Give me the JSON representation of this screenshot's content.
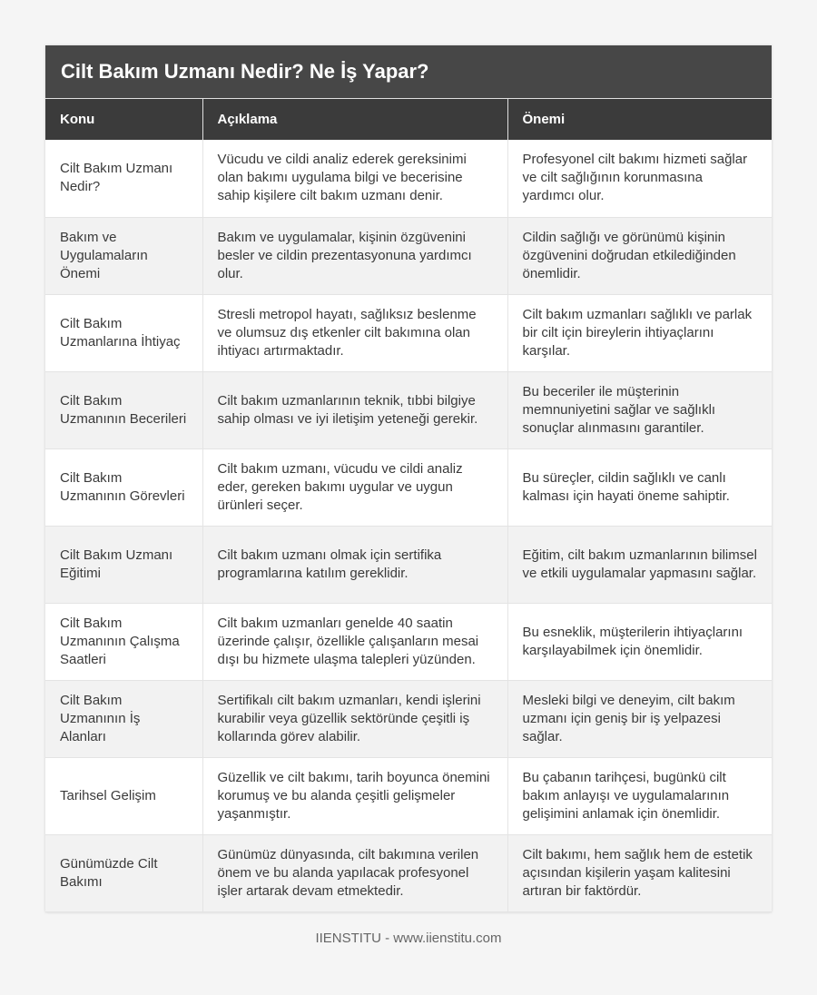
{
  "title": "Cilt Bakım Uzmanı Nedir? Ne İş Yapar?",
  "headers": [
    "Konu",
    "Açıklama",
    "Önemi"
  ],
  "rows": [
    [
      "Cilt Bakım Uzmanı Nedir?",
      "Vücudu ve cildi analiz ederek gereksinimi olan bakımı uygulama bilgi ve becerisine sahip kişilere cilt bakım uzmanı denir.",
      "Profesyonel cilt bakımı hizmeti sağlar ve cilt sağlığının korunmasına yardımcı olur."
    ],
    [
      "Bakım ve Uygulamaların Önemi",
      "Bakım ve uygulamalar, kişinin özgüvenini besler ve cildin prezentasyonuna yardımcı olur.",
      "Cildin sağlığı ve görünümü kişinin özgüvenini doğrudan etkilediğinden önemlidir."
    ],
    [
      "Cilt Bakım Uzmanlarına İhtiyaç",
      "Stresli metropol hayatı, sağlıksız beslenme ve olumsuz dış etkenler cilt bakımına olan ihtiyacı artırmaktadır.",
      "Cilt bakım uzmanları sağlıklı ve parlak bir cilt için bireylerin ihtiyaçlarını karşılar."
    ],
    [
      "Cilt Bakım Uzmanının Becerileri",
      "Cilt bakım uzmanlarının teknik, tıbbi bilgiye sahip olması ve iyi iletişim yeteneği gerekir.",
      "Bu beceriler ile müşterinin memnuniyetini sağlar ve sağlıklı sonuçlar alınmasını garantiler."
    ],
    [
      "Cilt Bakım Uzmanının Görevleri",
      "Cilt bakım uzmanı, vücudu ve cildi analiz eder, gereken bakımı uygular ve uygun ürünleri seçer.",
      "Bu süreçler, cildin sağlıklı ve canlı kalması için hayati öneme sahiptir."
    ],
    [
      "Cilt Bakım Uzmanı Eğitimi",
      "Cilt bakım uzmanı olmak için sertifika programlarına katılım gereklidir.",
      "Eğitim, cilt bakım uzmanlarının bilimsel ve etkili uygulamalar yapmasını sağlar."
    ],
    [
      "Cilt Bakım Uzmanının Çalışma Saatleri",
      "Cilt bakım uzmanları genelde 40 saatin üzerinde çalışır, özellikle çalışanların mesai dışı bu hizmete ulaşma talepleri yüzünden.",
      "Bu esneklik, müşterilerin ihtiyaçlarını karşılayabilmek için önemlidir."
    ],
    [
      "Cilt Bakım Uzmanının İş Alanları",
      "Sertifikalı cilt bakım uzmanları, kendi işlerini kurabilir veya güzellik sektöründe çeşitli iş kollarında görev alabilir.",
      "Mesleki bilgi ve deneyim, cilt bakım uzmanı için geniş bir iş yelpazesi sağlar."
    ],
    [
      "Tarihsel Gelişim",
      "Güzellik ve cilt bakımı, tarih boyunca önemini korumuş ve bu alanda çeşitli gelişmeler yaşanmıştır.",
      "Bu çabanın tarihçesi, bugünkü cilt bakım anlayışı ve uygulamalarının gelişimini anlamak için önemlidir."
    ],
    [
      "Günümüzde Cilt Bakımı",
      "Günümüz dünyasında, cilt bakımına verilen önem ve bu alanda yapılacak profesyonel işler artarak devam etmektedir.",
      "Cilt bakımı, hem sağlık hem de estetik açısından kişilerin yaşam kalitesini artıran bir faktördür."
    ]
  ],
  "footer": "IIENSTITU - www.iienstitu.com"
}
